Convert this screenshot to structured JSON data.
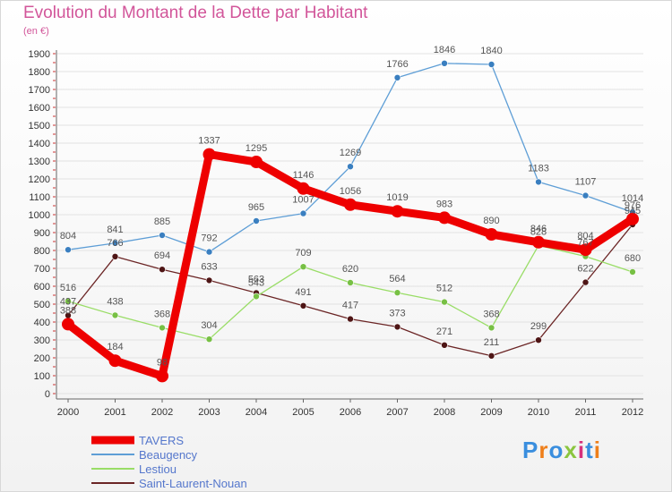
{
  "chart_data": {
    "type": "line",
    "title": "Evolution du Montant de la Dette par Habitant",
    "unit": "(en €)",
    "x": [
      "2000",
      "2001",
      "2002",
      "2003",
      "2004",
      "2005",
      "2006",
      "2007",
      "2008",
      "2009",
      "2010",
      "2011",
      "2012"
    ],
    "yticks": [
      "0",
      "100",
      "200",
      "300",
      "400",
      "500",
      "600",
      "700",
      "800",
      "900",
      "1000",
      "1100",
      "1200",
      "1300",
      "1400",
      "1500",
      "1600",
      "1700",
      "1800",
      "1900"
    ],
    "ylim": [
      0,
      1900
    ],
    "legend_position": "bottom-left",
    "series": [
      {
        "name": "TAVERS",
        "color": "#ee0000",
        "values": [
          388,
          184,
          98,
          1337,
          1295,
          1146,
          1056,
          1019,
          983,
          890,
          846,
          804,
          976
        ]
      },
      {
        "name": "Beaugency",
        "color": "#5e9ed6",
        "values": [
          804,
          841,
          885,
          792,
          965,
          1007,
          1269,
          1766,
          1846,
          1840,
          1183,
          1107,
          1014
        ]
      },
      {
        "name": "Lestiou",
        "color": "#99dd66",
        "values": [
          516,
          438,
          368,
          304,
          543,
          709,
          620,
          564,
          512,
          368,
          828,
          767,
          680
        ]
      },
      {
        "name": "Saint-Laurent-Nouan",
        "color": "#6b2525",
        "values": [
          437,
          766,
          694,
          633,
          563,
          491,
          417,
          373,
          271,
          211,
          299,
          622,
          945
        ]
      }
    ]
  },
  "logo": {
    "text": "Proxiti"
  }
}
